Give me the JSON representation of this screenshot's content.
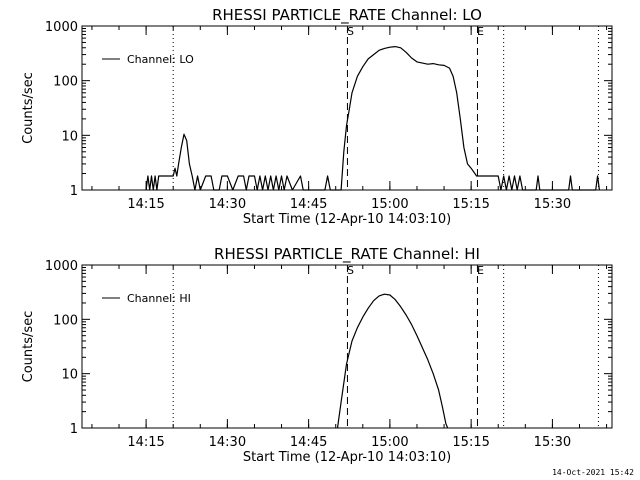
{
  "footer": {
    "timestamp": "14-Oct-2021 15:42"
  },
  "chart_data": [
    {
      "type": "line",
      "title": "RHESSI PARTICLE_RATE Channel: LO",
      "xlabel": "Start Time (12-Apr-10 14:03:10)",
      "ylabel": "Counts/sec",
      "yscale": "log",
      "ylim": [
        1,
        1000
      ],
      "xlim": [
        "14:03:10",
        "15:41:00"
      ],
      "xticks": [
        "14:15",
        "14:30",
        "14:45",
        "15:00",
        "15:15",
        "15:30"
      ],
      "yticks": [
        "1",
        "10",
        "100",
        "1000"
      ],
      "legend": {
        "label": "Channel: LO",
        "position": "top-left"
      },
      "markers": [
        {
          "time": "14:52:10",
          "label": "S",
          "style": "dashed"
        },
        {
          "time": "15:16:10",
          "label": "E",
          "style": "dashed"
        },
        {
          "time": "14:20:00",
          "label": "",
          "style": "dotted"
        },
        {
          "time": "15:21:00",
          "label": "",
          "style": "dotted"
        },
        {
          "time": "15:38:30",
          "label": "",
          "style": "dotted"
        }
      ],
      "series": [
        {
          "name": "Channel: LO",
          "points": [
            [
              "14:15:00",
              1
            ],
            [
              "14:15:20",
              1.8
            ],
            [
              "14:15:40",
              1
            ],
            [
              "14:16:00",
              1.8
            ],
            [
              "14:16:20",
              1
            ],
            [
              "14:16:40",
              1.8
            ],
            [
              "14:17:00",
              1
            ],
            [
              "14:17:20",
              1.8
            ],
            [
              "14:17:40",
              1.8
            ],
            [
              "14:20:00",
              1.8
            ],
            [
              "14:20:20",
              2.5
            ],
            [
              "14:20:40",
              1.8
            ],
            [
              "14:21:00",
              3
            ],
            [
              "14:21:30",
              6
            ],
            [
              "14:22:00",
              10.5
            ],
            [
              "14:22:30",
              8
            ],
            [
              "14:23:00",
              3
            ],
            [
              "14:23:30",
              1.8
            ],
            [
              "14:24:00",
              1
            ],
            [
              "14:24:30",
              1.8
            ],
            [
              "14:25:00",
              1
            ],
            [
              "14:26:00",
              1.8
            ],
            [
              "14:27:00",
              1.8
            ],
            [
              "14:27:30",
              1
            ],
            [
              "14:28:30",
              1
            ],
            [
              "14:29:00",
              1.8
            ],
            [
              "14:30:00",
              1.8
            ],
            [
              "14:31:00",
              1
            ],
            [
              "14:32:00",
              1.8
            ],
            [
              "14:33:00",
              1.8
            ],
            [
              "14:33:30",
              1
            ],
            [
              "14:34:00",
              1.8
            ],
            [
              "14:35:00",
              1.8
            ],
            [
              "14:35:30",
              1
            ],
            [
              "14:36:00",
              1.8
            ],
            [
              "14:36:30",
              1
            ],
            [
              "14:37:00",
              1.8
            ],
            [
              "14:37:30",
              1
            ],
            [
              "14:38:00",
              1.8
            ],
            [
              "14:38:30",
              1
            ],
            [
              "14:39:00",
              1.8
            ],
            [
              "14:39:30",
              1
            ],
            [
              "14:40:00",
              1.8
            ],
            [
              "14:40:30",
              1
            ],
            [
              "14:41:00",
              1.8
            ],
            [
              "14:42:00",
              1
            ],
            [
              "14:43:30",
              1.8
            ],
            [
              "14:44:00",
              1
            ],
            [
              "14:48:00",
              1
            ],
            [
              "14:48:30",
              1.8
            ],
            [
              "14:49:00",
              1
            ],
            [
              "14:51:00",
              1
            ],
            [
              "14:51:30",
              5
            ],
            [
              "14:52:00",
              15
            ],
            [
              "14:52:30",
              30
            ],
            [
              "14:53:00",
              60
            ],
            [
              "14:54:00",
              120
            ],
            [
              "14:55:00",
              180
            ],
            [
              "14:56:00",
              250
            ],
            [
              "14:57:00",
              300
            ],
            [
              "14:58:00",
              360
            ],
            [
              "14:59:00",
              390
            ],
            [
              "15:00:00",
              410
            ],
            [
              "15:01:00",
              420
            ],
            [
              "15:02:00",
              400
            ],
            [
              "15:03:00",
              330
            ],
            [
              "15:04:00",
              260
            ],
            [
              "15:05:00",
              220
            ],
            [
              "15:06:00",
              210
            ],
            [
              "15:07:00",
              200
            ],
            [
              "15:08:00",
              205
            ],
            [
              "15:09:00",
              195
            ],
            [
              "15:10:00",
              190
            ],
            [
              "15:11:00",
              170
            ],
            [
              "15:11:40",
              120
            ],
            [
              "15:12:20",
              60
            ],
            [
              "15:13:00",
              20
            ],
            [
              "15:13:40",
              6
            ],
            [
              "15:14:20",
              3
            ],
            [
              "15:15:00",
              2.5
            ],
            [
              "15:16:00",
              1.8
            ],
            [
              "15:20:00",
              1.8
            ],
            [
              "15:20:30",
              1
            ],
            [
              "15:21:00",
              1.8
            ],
            [
              "15:21:30",
              1
            ],
            [
              "15:22:00",
              1.8
            ],
            [
              "15:22:30",
              1
            ],
            [
              "15:23:00",
              1.8
            ],
            [
              "15:23:30",
              1
            ],
            [
              "15:24:00",
              1.8
            ],
            [
              "15:24:30",
              1
            ],
            [
              "15:25:00",
              1
            ],
            [
              "15:27:00",
              1
            ],
            [
              "15:27:20",
              1.8
            ],
            [
              "15:27:40",
              1
            ],
            [
              "15:33:00",
              1
            ],
            [
              "15:33:20",
              1.8
            ],
            [
              "15:33:40",
              1
            ],
            [
              "15:38:00",
              1
            ],
            [
              "15:38:20",
              1.8
            ],
            [
              "15:38:40",
              1
            ]
          ]
        }
      ]
    },
    {
      "type": "line",
      "title": "RHESSI PARTICLE_RATE Channel: HI",
      "xlabel": "Start Time (12-Apr-10 14:03:10)",
      "ylabel": "Counts/sec",
      "yscale": "log",
      "ylim": [
        1,
        1000
      ],
      "xlim": [
        "14:03:10",
        "15:41:00"
      ],
      "xticks": [
        "14:15",
        "14:30",
        "14:45",
        "15:00",
        "15:15",
        "15:30"
      ],
      "yticks": [
        "1",
        "10",
        "100",
        "1000"
      ],
      "legend": {
        "label": "Channel: HI",
        "position": "top-left"
      },
      "markers": [
        {
          "time": "14:52:10",
          "label": "S",
          "style": "dashed"
        },
        {
          "time": "15:16:10",
          "label": "E",
          "style": "dashed"
        },
        {
          "time": "14:20:00",
          "label": "",
          "style": "dotted"
        },
        {
          "time": "15:21:00",
          "label": "",
          "style": "dotted"
        },
        {
          "time": "15:38:30",
          "label": "",
          "style": "dotted"
        }
      ],
      "series": [
        {
          "name": "Channel: HI",
          "points": [
            [
              "14:50:20",
              1
            ],
            [
              "14:51:00",
              3
            ],
            [
              "14:52:00",
              15
            ],
            [
              "14:53:00",
              40
            ],
            [
              "14:54:00",
              70
            ],
            [
              "14:55:00",
              110
            ],
            [
              "14:56:00",
              160
            ],
            [
              "14:57:00",
              220
            ],
            [
              "14:58:00",
              270
            ],
            [
              "14:59:00",
              290
            ],
            [
              "15:00:00",
              280
            ],
            [
              "15:01:00",
              230
            ],
            [
              "15:02:00",
              170
            ],
            [
              "15:03:00",
              120
            ],
            [
              "15:04:00",
              80
            ],
            [
              "15:05:00",
              50
            ],
            [
              "15:06:00",
              30
            ],
            [
              "15:07:00",
              18
            ],
            [
              "15:08:00",
              10
            ],
            [
              "15:09:00",
              5
            ],
            [
              "15:09:40",
              2.5
            ],
            [
              "15:10:20",
              1.2
            ],
            [
              "15:10:40",
              1
            ]
          ]
        }
      ]
    }
  ]
}
